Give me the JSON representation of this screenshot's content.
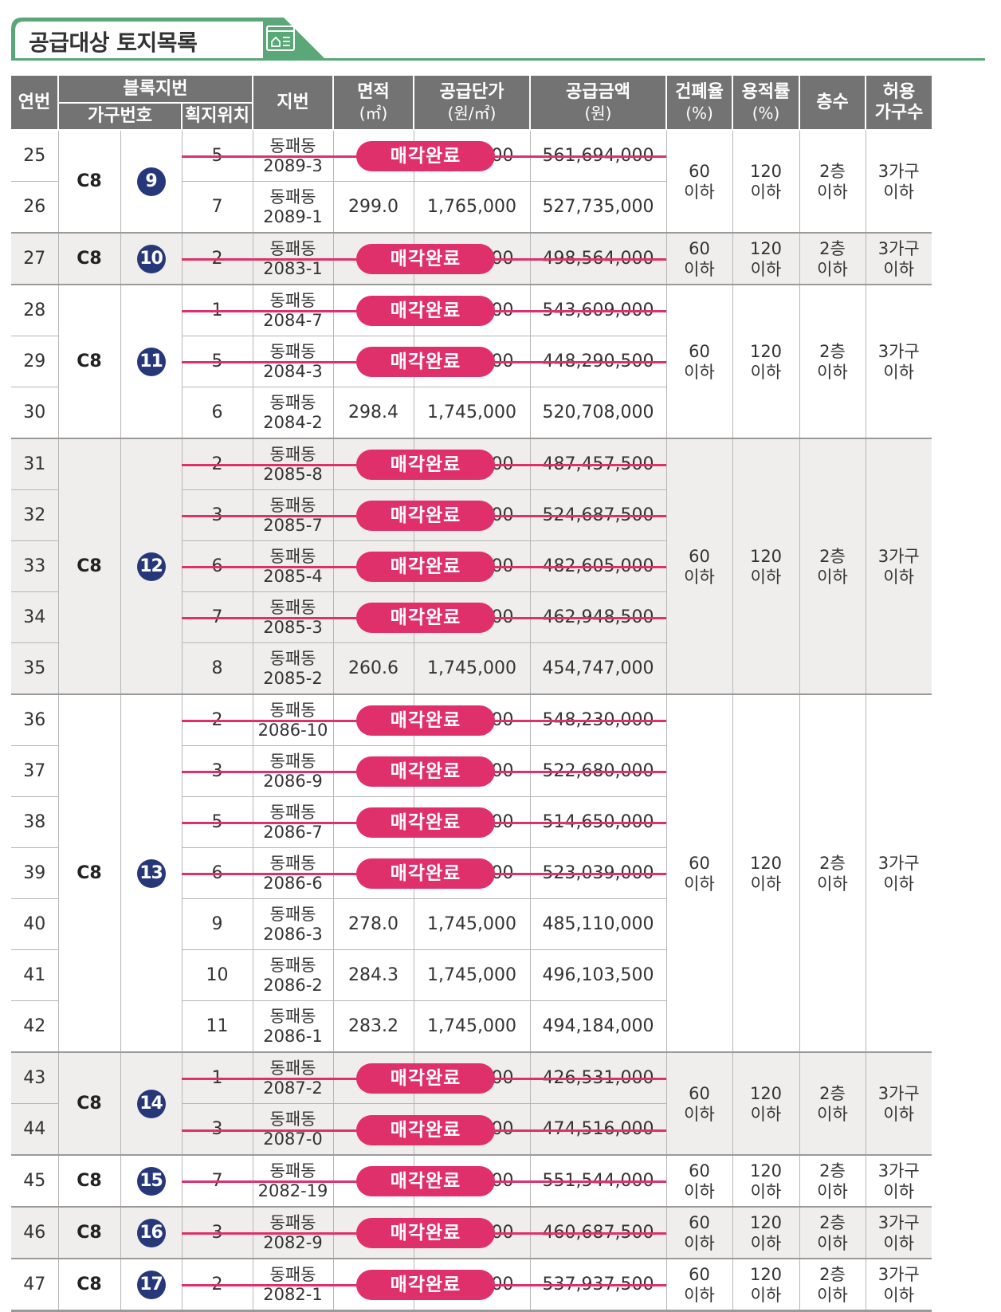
{
  "title": "공급대상 토지목록",
  "colors": {
    "accent_green": "#5aa878",
    "header_gray": "#737373",
    "badge_navy": "#27387a",
    "sold_pink": "#e0306b"
  },
  "headers": {
    "serial": "연번",
    "block_lot": "블록지번",
    "group_no": "가구번호",
    "lot_position": "획지위치",
    "jibun": "지번",
    "area": "면적",
    "area_unit": "(㎡)",
    "unit_price": "공급단가",
    "unit_price_unit": "(원/㎡)",
    "amount": "공급금액",
    "amount_unit": "(원)",
    "bcr": "건폐율",
    "bcr_unit": "(%)",
    "far": "용적률",
    "far_unit": "(%)",
    "floors": "층수",
    "households_1": "허용",
    "households_2": "가구수"
  },
  "groups": [
    {
      "block": "C8",
      "group_no": "9",
      "bcr": [
        "60",
        "이하"
      ],
      "far": [
        "120",
        "이하"
      ],
      "floors": [
        "2층",
        "이하"
      ],
      "households": [
        "3가구",
        "이하"
      ],
      "rows": [
        {
          "no": "25",
          "pos": "5",
          "dong": "동패동",
          "lot": "2089-3",
          "area": "",
          "price": "00",
          "amount": "561,694,000",
          "sold": true
        },
        {
          "no": "26",
          "pos": "7",
          "dong": "동패동",
          "lot": "2089-1",
          "area": "299.0",
          "price": "1,765,000",
          "amount": "527,735,000",
          "sold": false
        }
      ]
    },
    {
      "block": "C8",
      "group_no": "10",
      "bcr": [
        "60",
        "이하"
      ],
      "far": [
        "120",
        "이하"
      ],
      "floors": [
        "2층",
        "이하"
      ],
      "households": [
        "3가구",
        "이하"
      ],
      "rows": [
        {
          "no": "27",
          "pos": "2",
          "dong": "동패동",
          "lot": "2083-1",
          "area": "",
          "price": "00",
          "amount": "498,564,000",
          "sold": true
        }
      ]
    },
    {
      "block": "C8",
      "group_no": "11",
      "bcr": [
        "60",
        "이하"
      ],
      "far": [
        "120",
        "이하"
      ],
      "floors": [
        "2층",
        "이하"
      ],
      "households": [
        "3가구",
        "이하"
      ],
      "rows": [
        {
          "no": "28",
          "pos": "1",
          "dong": "동패동",
          "lot": "2084-7",
          "area": "",
          "price": "00",
          "amount": "543,609,000",
          "sold": true
        },
        {
          "no": "29",
          "pos": "5",
          "dong": "동패동",
          "lot": "2084-3",
          "area": "",
          "price": "00",
          "amount": "448,290,500",
          "sold": true
        },
        {
          "no": "30",
          "pos": "6",
          "dong": "동패동",
          "lot": "2084-2",
          "area": "298.4",
          "price": "1,745,000",
          "amount": "520,708,000",
          "sold": false
        }
      ]
    },
    {
      "block": "C8",
      "group_no": "12",
      "bcr": [
        "60",
        "이하"
      ],
      "far": [
        "120",
        "이하"
      ],
      "floors": [
        "2층",
        "이하"
      ],
      "households": [
        "3가구",
        "이하"
      ],
      "rows": [
        {
          "no": "31",
          "pos": "2",
          "dong": "동패동",
          "lot": "2085-8",
          "area": "",
          "price": "00",
          "amount": "487,457,500",
          "sold": true
        },
        {
          "no": "32",
          "pos": "3",
          "dong": "동패동",
          "lot": "2085-7",
          "area": "",
          "price": "00",
          "amount": "524,687,500",
          "sold": true
        },
        {
          "no": "33",
          "pos": "6",
          "dong": "동패동",
          "lot": "2085-4",
          "area": "",
          "price": "00",
          "amount": "482,605,000",
          "sold": true
        },
        {
          "no": "34",
          "pos": "7",
          "dong": "동패동",
          "lot": "2085-3",
          "area": "",
          "price": "00",
          "amount": "462,948,500",
          "sold": true
        },
        {
          "no": "35",
          "pos": "8",
          "dong": "동패동",
          "lot": "2085-2",
          "area": "260.6",
          "price": "1,745,000",
          "amount": "454,747,000",
          "sold": false
        }
      ]
    },
    {
      "block": "C8",
      "group_no": "13",
      "bcr": [
        "60",
        "이하"
      ],
      "far": [
        "120",
        "이하"
      ],
      "floors": [
        "2층",
        "이하"
      ],
      "households": [
        "3가구",
        "이하"
      ],
      "rows": [
        {
          "no": "36",
          "pos": "2",
          "dong": "동패동",
          "lot": "2086-10",
          "area": "",
          "price": "00",
          "amount": "548,230,000",
          "sold": true
        },
        {
          "no": "37",
          "pos": "3",
          "dong": "동패동",
          "lot": "2086-9",
          "area": "",
          "price": "00",
          "amount": "522,680,000",
          "sold": true
        },
        {
          "no": "38",
          "pos": "5",
          "dong": "동패동",
          "lot": "2086-7",
          "area": "",
          "price": "00",
          "amount": "514,650,000",
          "sold": true
        },
        {
          "no": "39",
          "pos": "6",
          "dong": "동패동",
          "lot": "2086-6",
          "area": "",
          "price": "00",
          "amount": "523,039,000",
          "sold": true
        },
        {
          "no": "40",
          "pos": "9",
          "dong": "동패동",
          "lot": "2086-3",
          "area": "278.0",
          "price": "1,745,000",
          "amount": "485,110,000",
          "sold": false
        },
        {
          "no": "41",
          "pos": "10",
          "dong": "동패동",
          "lot": "2086-2",
          "area": "284.3",
          "price": "1,745,000",
          "amount": "496,103,500",
          "sold": false
        },
        {
          "no": "42",
          "pos": "11",
          "dong": "동패동",
          "lot": "2086-1",
          "area": "283.2",
          "price": "1,745,000",
          "amount": "494,184,000",
          "sold": false
        }
      ]
    },
    {
      "block": "C8",
      "group_no": "14",
      "bcr": [
        "60",
        "이하"
      ],
      "far": [
        "120",
        "이하"
      ],
      "floors": [
        "2층",
        "이하"
      ],
      "households": [
        "3가구",
        "이하"
      ],
      "rows": [
        {
          "no": "43",
          "pos": "1",
          "dong": "동패동",
          "lot": "2087-2",
          "area": "",
          "price": "00",
          "amount": "426,531,000",
          "sold": true
        },
        {
          "no": "44",
          "pos": "3",
          "dong": "동패동",
          "lot": "2087-0",
          "area": "",
          "price": "00",
          "amount": "474,516,000",
          "sold": true
        }
      ]
    },
    {
      "block": "C8",
      "group_no": "15",
      "bcr": [
        "60",
        "이하"
      ],
      "far": [
        "120",
        "이하"
      ],
      "floors": [
        "2층",
        "이하"
      ],
      "households": [
        "3가구",
        "이하"
      ],
      "rows": [
        {
          "no": "45",
          "pos": "7",
          "dong": "동패동",
          "lot": "2082-19",
          "area": "",
          "price": "00",
          "amount": "551,544,000",
          "sold": true
        }
      ]
    },
    {
      "block": "C8",
      "group_no": "16",
      "bcr": [
        "60",
        "이하"
      ],
      "far": [
        "120",
        "이하"
      ],
      "floors": [
        "2층",
        "이하"
      ],
      "households": [
        "3가구",
        "이하"
      ],
      "rows": [
        {
          "no": "46",
          "pos": "3",
          "dong": "동패동",
          "lot": "2082-9",
          "area": "",
          "price": "00",
          "amount": "460,687,500",
          "sold": true
        }
      ]
    },
    {
      "block": "C8",
      "group_no": "17",
      "bcr": [
        "60",
        "이하"
      ],
      "far": [
        "120",
        "이하"
      ],
      "floors": [
        "2층",
        "이하"
      ],
      "households": [
        "3가구",
        "이하"
      ],
      "rows": [
        {
          "no": "47",
          "pos": "2",
          "dong": "동패동",
          "lot": "2082-1",
          "area": "",
          "price": "00",
          "amount": "537,937,500",
          "sold": true
        }
      ]
    }
  ],
  "sold_label": "매각완료"
}
